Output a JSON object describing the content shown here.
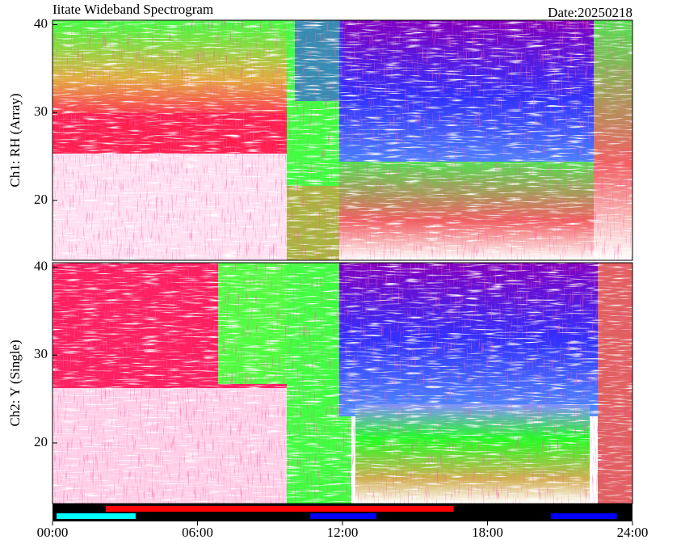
{
  "chart_data": {
    "type": "spectrogram",
    "title": "Iitate Wideband Spectrogram",
    "date": "Date:20250218",
    "xlim": [
      0,
      24
    ],
    "xticks": [
      {
        "value": 0,
        "label": "00:00"
      },
      {
        "value": 6,
        "label": "06:00"
      },
      {
        "value": 12,
        "label": "12:00"
      },
      {
        "value": 18,
        "label": "18:00"
      },
      {
        "value": 24,
        "label": "24:00"
      }
    ],
    "panels": [
      {
        "ylabel": "Ch1: RH (Array)",
        "ylim": [
          13.2,
          40.5
        ],
        "yticks": [
          20,
          30,
          40
        ]
      },
      {
        "ylabel": "Ch2: Y (Single)",
        "ylim": [
          13.1,
          40.5
        ],
        "yticks": [
          20,
          30,
          40
        ]
      }
    ],
    "status_rows": [
      [
        {
          "color": "#ff0000",
          "start": 2.2,
          "end": 16.6
        }
      ],
      [
        {
          "color": "#00ffff",
          "start": 0.17,
          "end": 3.44
        },
        {
          "color": "#0000ff",
          "start": 10.66,
          "end": 13.4
        },
        {
          "color": "#0000ff",
          "start": 20.62,
          "end": 23.36
        }
      ]
    ]
  }
}
